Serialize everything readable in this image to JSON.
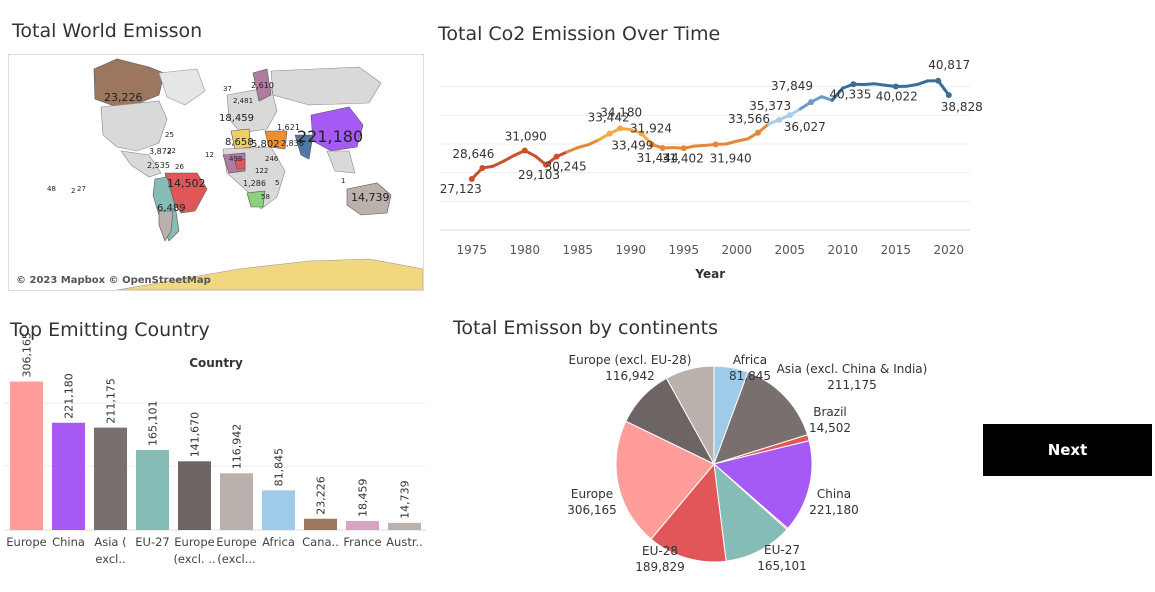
{
  "dashboard": {
    "map_title": "Total World Emisson",
    "line_title": "Total Co2 Emission Over Time",
    "bar_title": "Top Emitting Country",
    "pie_title": "Total Emisson by continents",
    "next_label": "Next",
    "map_credit": "© 2023 Mapbox © OpenStreetMap"
  },
  "map_labels": [
    {
      "text": "23,226",
      "emph": "large"
    },
    {
      "text": "221,180",
      "emph": "xlarge"
    },
    {
      "text": "14,502",
      "emph": "large"
    },
    {
      "text": "14,739",
      "emph": "large"
    },
    {
      "text": "6,489",
      "emph": "medium"
    },
    {
      "text": "18,459",
      "emph": "medium"
    },
    {
      "text": "2,610",
      "emph": "small"
    },
    {
      "text": "8,658",
      "emph": "medium"
    },
    {
      "text": "5,802",
      "emph": "medium"
    },
    {
      "text": "1,621",
      "emph": "small"
    },
    {
      "text": "2,836",
      "emph": "small"
    },
    {
      "text": "1,286",
      "emph": "small"
    },
    {
      "text": "2,535",
      "emph": "small"
    },
    {
      "text": "3,872",
      "emph": "small"
    },
    {
      "text": "37",
      "emph": "tiny"
    },
    {
      "text": "2,481",
      "emph": "tiny"
    },
    {
      "text": "25",
      "emph": "tiny"
    },
    {
      "text": "22",
      "emph": "tiny"
    },
    {
      "text": "26",
      "emph": "tiny"
    },
    {
      "text": "48",
      "emph": "tiny"
    },
    {
      "text": "2",
      "emph": "tiny"
    },
    {
      "text": "27",
      "emph": "tiny"
    },
    {
      "text": "498",
      "emph": "tiny"
    },
    {
      "text": "122",
      "emph": "tiny"
    },
    {
      "text": "246",
      "emph": "tiny"
    },
    {
      "text": "5",
      "emph": "tiny"
    },
    {
      "text": "58",
      "emph": "tiny"
    },
    {
      "text": "1",
      "emph": "tiny"
    },
    {
      "text": "12",
      "emph": "tiny"
    }
  ],
  "chart_data": [
    {
      "type": "line",
      "title": "Total Co2 Emission Over Time",
      "xlabel": "Year",
      "ylabel": "",
      "xlim": [
        1972,
        2022
      ],
      "ylim": [
        20000,
        44000
      ],
      "x_ticks": [
        1975,
        1980,
        1985,
        1990,
        1995,
        2000,
        2005,
        2010,
        2015,
        2020
      ],
      "grid": true,
      "points": [
        {
          "x": 1975,
          "y": 27123
        },
        {
          "x": 1976,
          "y": 28646
        },
        {
          "x": 1977,
          "y": 28900
        },
        {
          "x": 1978,
          "y": 29600
        },
        {
          "x": 1979,
          "y": 30400
        },
        {
          "x": 1980,
          "y": 31090
        },
        {
          "x": 1981,
          "y": 30300
        },
        {
          "x": 1982,
          "y": 29103
        },
        {
          "x": 1983,
          "y": 30245
        },
        {
          "x": 1984,
          "y": 30900
        },
        {
          "x": 1985,
          "y": 31500
        },
        {
          "x": 1986,
          "y": 31900
        },
        {
          "x": 1987,
          "y": 32600
        },
        {
          "x": 1988,
          "y": 33442
        },
        {
          "x": 1989,
          "y": 34180
        },
        {
          "x": 1990,
          "y": 34000
        },
        {
          "x": 1991,
          "y": 33499
        },
        {
          "x": 1992,
          "y": 31924
        },
        {
          "x": 1993,
          "y": 31444
        },
        {
          "x": 1994,
          "y": 31500
        },
        {
          "x": 1995,
          "y": 31402
        },
        {
          "x": 1996,
          "y": 31700
        },
        {
          "x": 1997,
          "y": 31800
        },
        {
          "x": 1998,
          "y": 31940
        },
        {
          "x": 1999,
          "y": 32000
        },
        {
          "x": 2000,
          "y": 32400
        },
        {
          "x": 2001,
          "y": 32700
        },
        {
          "x": 2002,
          "y": 33566
        },
        {
          "x": 2003,
          "y": 34800
        },
        {
          "x": 2004,
          "y": 35373
        },
        {
          "x": 2005,
          "y": 36027
        },
        {
          "x": 2006,
          "y": 36900
        },
        {
          "x": 2007,
          "y": 37849
        },
        {
          "x": 2008,
          "y": 38600
        },
        {
          "x": 2009,
          "y": 38100
        },
        {
          "x": 2010,
          "y": 39800
        },
        {
          "x": 2011,
          "y": 40335
        },
        {
          "x": 2012,
          "y": 40300
        },
        {
          "x": 2013,
          "y": 40400
        },
        {
          "x": 2014,
          "y": 40200
        },
        {
          "x": 2015,
          "y": 40022
        },
        {
          "x": 2016,
          "y": 40050
        },
        {
          "x": 2017,
          "y": 40300
        },
        {
          "x": 2018,
          "y": 40800
        },
        {
          "x": 2019,
          "y": 40817
        },
        {
          "x": 2020,
          "y": 38828
        }
      ],
      "data_labels": [
        {
          "x": 1975,
          "y": 27123,
          "text": "27,123"
        },
        {
          "x": 1976,
          "y": 28646,
          "text": "28,646"
        },
        {
          "x": 1980,
          "y": 31090,
          "text": "31,090"
        },
        {
          "x": 1982,
          "y": 29103,
          "text": "29,103"
        },
        {
          "x": 1983,
          "y": 30245,
          "text": "30,245"
        },
        {
          "x": 1988,
          "y": 33442,
          "text": "33,442"
        },
        {
          "x": 1989,
          "y": 34180,
          "text": "34,180"
        },
        {
          "x": 1991,
          "y": 33499,
          "text": "33,499"
        },
        {
          "x": 1992,
          "y": 31924,
          "text": "31,924"
        },
        {
          "x": 1993,
          "y": 31444,
          "text": "31,444"
        },
        {
          "x": 1995,
          "y": 31402,
          "text": "31,402"
        },
        {
          "x": 1998,
          "y": 31940,
          "text": "31,940"
        },
        {
          "x": 2002,
          "y": 33566,
          "text": "33,566"
        },
        {
          "x": 2004,
          "y": 35373,
          "text": "35,373"
        },
        {
          "x": 2005,
          "y": 36027,
          "text": "36,027"
        },
        {
          "x": 2007,
          "y": 37849,
          "text": "37,849"
        },
        {
          "x": 2011,
          "y": 40335,
          "text": "40,335"
        },
        {
          "x": 2015,
          "y": 40022,
          "text": "40,022"
        },
        {
          "x": 2019,
          "y": 40817,
          "text": "40,817"
        },
        {
          "x": 2020,
          "y": 38828,
          "text": "38,828"
        }
      ],
      "colors": {
        "early": "#c9502a",
        "mid": "#f5a742",
        "late_light": "#a8cde8",
        "late": "#3b6d9a"
      }
    },
    {
      "type": "bar",
      "title": "Top Emitting Country",
      "xlabel": "Country",
      "ylabel": "",
      "ylim": [
        0,
        330000
      ],
      "categories": [
        "Europe",
        "China",
        "Asia (\nexcl..",
        "EU-27",
        "Europe\n(excl. ..",
        "Europe\n(excl...",
        "Africa",
        "Cana..",
        "France",
        "Austr.."
      ],
      "values": [
        306165,
        221180,
        211175,
        165101,
        141670,
        116942,
        81845,
        23226,
        18459,
        14739
      ],
      "value_labels": [
        "306,165",
        "221,180",
        "211,175",
        "165,101",
        "141,670",
        "116,942",
        "81,845",
        "23,226",
        "18,459",
        "14,739"
      ],
      "colors": [
        "#ff9d9a",
        "#a55af5",
        "#79706e",
        "#86bcb6",
        "#6d6464",
        "#bab0ac",
        "#9fcae8",
        "#9d7660",
        "#d7a4c5",
        "#bab0ac"
      ],
      "grid": true
    },
    {
      "type": "pie",
      "title": "Total Emisson by continents",
      "slices": [
        {
          "label": "Africa",
          "value": 81845,
          "value_text": "81,845",
          "color": "#9fcae8"
        },
        {
          "label": "Asia (excl. China & India)",
          "value": 211175,
          "value_text": "211,175",
          "color": "#79706e"
        },
        {
          "label": "Brazil",
          "value": 14502,
          "value_text": "14,502",
          "color": "#e15759"
        },
        {
          "label": "China",
          "value": 221180,
          "value_text": "221,180",
          "color": "#a55af5"
        },
        {
          "label": "",
          "value": 3500,
          "value_text": "",
          "color": "#f28e2b"
        },
        {
          "label": "EU-27",
          "value": 165101,
          "value_text": "165,101",
          "color": "#86bcb6"
        },
        {
          "label": "EU-28",
          "value": 189829,
          "value_text": "189,829",
          "color": "#e15759"
        },
        {
          "label": "Europe",
          "value": 306165,
          "value_text": "306,165",
          "color": "#ff9d9a"
        },
        {
          "label": "",
          "value": 141670,
          "value_text": "",
          "color": "#6d6464"
        },
        {
          "label": "Europe (excl. EU-28)",
          "value": 116942,
          "value_text": "116,942",
          "color": "#bab0ac"
        }
      ]
    }
  ]
}
